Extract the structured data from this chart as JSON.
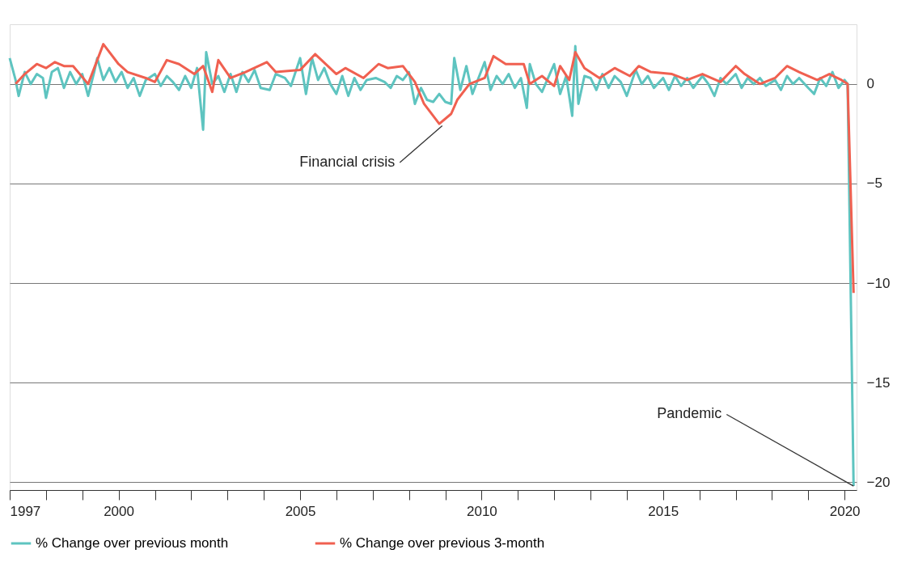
{
  "chart_data": {
    "type": "line",
    "xlim": [
      "1997-01",
      "2020-05"
    ],
    "xticks": [
      "1997",
      {
        "value": "1998",
        "label": null
      },
      {
        "value": "1999",
        "label": null
      },
      "2000",
      {
        "value": "2001",
        "label": null
      },
      {
        "value": "2002",
        "label": null
      },
      {
        "value": "2003",
        "label": null
      },
      {
        "value": "2004",
        "label": null
      },
      "2005",
      {
        "value": "2006",
        "label": null
      },
      {
        "value": "2007",
        "label": null
      },
      {
        "value": "2008",
        "label": null
      },
      {
        "value": "2009",
        "label": null
      },
      "2010",
      {
        "value": "2011",
        "label": null
      },
      {
        "value": "2012",
        "label": null
      },
      {
        "value": "2013",
        "label": null
      },
      {
        "value": "2014",
        "label": null
      },
      "2015",
      {
        "value": "2016",
        "label": null
      },
      {
        "value": "2017",
        "label": null
      },
      {
        "value": "2018",
        "label": null
      },
      {
        "value": "2019",
        "label": null
      },
      "2020"
    ],
    "ylim": [
      -20.4,
      3
    ],
    "yticks": [
      0,
      -5,
      -10,
      -15,
      -20
    ],
    "grid": "y",
    "legend": "bottom",
    "line_style": "solid",
    "marker": "none",
    "series": [
      {
        "name": "% Change over previous month",
        "color": "#5ec4c0",
        "x": [
          "1997-01",
          "1997-03",
          "1997-04",
          "1997-06",
          "1997-08",
          "1997-10",
          "1997-12",
          "1998-01",
          "1998-03",
          "1998-05",
          "1998-07",
          "1998-09",
          "1998-11",
          "1999-01",
          "1999-03",
          "1999-05",
          "1999-06",
          "1999-08",
          "1999-10",
          "1999-12",
          "2000-02",
          "2000-04",
          "2000-06",
          "2000-08",
          "2000-10",
          "2001-01",
          "2001-03",
          "2001-05",
          "2001-07",
          "2001-09",
          "2001-11",
          "2002-01",
          "2002-03",
          "2002-05",
          "2002-06",
          "2002-08",
          "2002-10",
          "2002-12",
          "2003-02",
          "2003-04",
          "2003-06",
          "2003-08",
          "2003-10",
          "2003-12",
          "2004-03",
          "2004-05",
          "2004-08",
          "2004-10",
          "2005-01",
          "2005-03",
          "2005-05",
          "2005-07",
          "2005-09",
          "2005-11",
          "2006-01",
          "2006-03",
          "2006-05",
          "2006-07",
          "2006-09",
          "2006-11",
          "2007-02",
          "2007-05",
          "2007-07",
          "2007-09",
          "2007-11",
          "2008-01",
          "2008-03",
          "2008-05",
          "2008-07",
          "2008-09",
          "2008-11",
          "2009-01",
          "2009-03",
          "2009-04",
          "2009-06",
          "2009-08",
          "2009-10",
          "2009-12",
          "2010-02",
          "2010-04",
          "2010-06",
          "2010-08",
          "2010-10",
          "2010-12",
          "2011-02",
          "2011-04",
          "2011-05",
          "2011-07",
          "2011-09",
          "2011-11",
          "2012-01",
          "2012-03",
          "2012-05",
          "2012-07",
          "2012-08",
          "2012-09",
          "2012-11",
          "2013-01",
          "2013-03",
          "2013-05",
          "2013-07",
          "2013-09",
          "2013-11",
          "2014-01",
          "2014-04",
          "2014-06",
          "2014-08",
          "2014-10",
          "2015-01",
          "2015-03",
          "2015-05",
          "2015-07",
          "2015-09",
          "2015-11",
          "2016-02",
          "2016-04",
          "2016-06",
          "2016-08",
          "2016-10",
          "2017-01",
          "2017-03",
          "2017-05",
          "2017-07",
          "2017-09",
          "2017-11",
          "2018-02",
          "2018-04",
          "2018-06",
          "2018-08",
          "2018-10",
          "2019-01",
          "2019-03",
          "2019-05",
          "2019-07",
          "2019-09",
          "2019-11",
          "2020-01",
          "2020-02",
          "2020-04"
        ],
        "values": [
          1.3,
          0.2,
          -0.6,
          0.6,
          0.0,
          0.5,
          0.3,
          -0.7,
          0.6,
          0.8,
          -0.2,
          0.6,
          0.0,
          0.5,
          -0.6,
          0.6,
          1.3,
          0.2,
          0.8,
          0.1,
          0.6,
          -0.2,
          0.3,
          -0.6,
          0.2,
          0.5,
          -0.1,
          0.4,
          0.1,
          -0.3,
          0.4,
          -0.2,
          0.8,
          -2.3,
          1.6,
          0.0,
          0.4,
          -0.4,
          0.5,
          -0.4,
          0.6,
          0.1,
          0.7,
          -0.2,
          -0.3,
          0.5,
          0.3,
          -0.1,
          1.3,
          -0.5,
          1.3,
          0.2,
          0.8,
          0.0,
          -0.5,
          0.4,
          -0.6,
          0.3,
          -0.3,
          0.2,
          0.3,
          0.1,
          -0.2,
          0.4,
          0.2,
          0.6,
          -1.0,
          -0.2,
          -0.8,
          -0.9,
          -0.5,
          -0.9,
          -1.0,
          1.3,
          -0.3,
          0.9,
          -0.5,
          0.3,
          1.1,
          -0.3,
          0.4,
          0.0,
          0.5,
          -0.2,
          0.3,
          -1.2,
          1.0,
          0.0,
          -0.4,
          0.3,
          1.0,
          -0.5,
          0.4,
          -1.6,
          1.9,
          -1.0,
          0.4,
          0.3,
          -0.3,
          0.5,
          -0.2,
          0.4,
          0.1,
          -0.6,
          0.7,
          0.0,
          0.4,
          -0.2,
          0.3,
          -0.3,
          0.4,
          -0.1,
          0.3,
          -0.2,
          0.4,
          0.0,
          -0.6,
          0.3,
          0.0,
          0.5,
          -0.2,
          0.3,
          0.0,
          0.3,
          -0.1,
          0.2,
          -0.3,
          0.4,
          0.0,
          0.3,
          -0.2,
          -0.5,
          0.3,
          -0.1,
          0.6,
          -0.2,
          0.2,
          0.0,
          -20.2
        ]
      },
      {
        "name": "% Change over previous 3-month",
        "color": "#f06050",
        "x": [
          "1997-03",
          "1997-06",
          "1997-10",
          "1998-01",
          "1998-04",
          "1998-07",
          "1998-10",
          "1999-03",
          "1999-08",
          "2000-01",
          "2000-04",
          "2000-10",
          "2001-01",
          "2001-05",
          "2001-09",
          "2002-02",
          "2002-05",
          "2002-08",
          "2002-10",
          "2003-02",
          "2003-07",
          "2004-02",
          "2004-05",
          "2005-01",
          "2005-06",
          "2006-01",
          "2006-04",
          "2006-10",
          "2007-03",
          "2007-06",
          "2007-11",
          "2008-03",
          "2008-06",
          "2008-11",
          "2009-03",
          "2009-05",
          "2009-09",
          "2010-02",
          "2010-05",
          "2010-09",
          "2011-03",
          "2011-05",
          "2011-09",
          "2012-01",
          "2012-03",
          "2012-06",
          "2012-08",
          "2012-11",
          "2013-04",
          "2013-09",
          "2014-02",
          "2014-05",
          "2014-09",
          "2015-04",
          "2015-09",
          "2016-02",
          "2016-08",
          "2017-01",
          "2017-04",
          "2017-09",
          "2018-02",
          "2018-06",
          "2018-10",
          "2019-04",
          "2019-08",
          "2019-12",
          "2020-02",
          "2020-04"
        ],
        "values": [
          0.0,
          0.5,
          1.0,
          0.8,
          1.1,
          0.9,
          0.9,
          0.0,
          2.0,
          1.0,
          0.6,
          0.3,
          0.1,
          1.2,
          1.0,
          0.5,
          0.9,
          -0.4,
          1.2,
          0.3,
          0.6,
          1.1,
          0.6,
          0.7,
          1.5,
          0.5,
          0.8,
          0.3,
          1.0,
          0.8,
          0.9,
          0.1,
          -1.0,
          -2.0,
          -1.5,
          -0.8,
          0.0,
          0.3,
          1.4,
          1.0,
          1.0,
          0.0,
          0.4,
          -0.1,
          0.9,
          0.2,
          1.6,
          0.8,
          0.3,
          0.8,
          0.4,
          0.9,
          0.6,
          0.5,
          0.2,
          0.5,
          0.1,
          0.9,
          0.5,
          0.0,
          0.3,
          0.9,
          0.6,
          0.2,
          0.5,
          0.2,
          0.0,
          -10.5
        ]
      }
    ],
    "annotations": [
      {
        "text": "Financial crisis",
        "x": "2008-12",
        "y": -2.1
      },
      {
        "text": "Pandemic",
        "x": "2020-04",
        "y": -20.2
      }
    ]
  }
}
